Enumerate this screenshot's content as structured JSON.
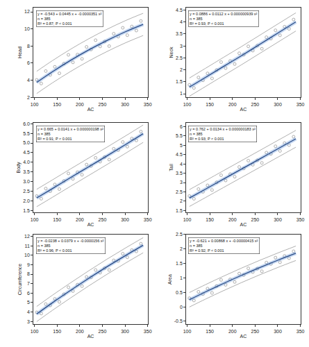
{
  "chart_data": [
    {
      "type": "scatter",
      "x_label": "AC",
      "y_label": "Head",
      "annotation": [
        "y = -0.543 + 0.0445 x + -0.0000351 x²",
        "n = 385",
        "R² = 0.87; P < 0.001"
      ],
      "x": [
        105,
        115,
        125,
        135,
        145,
        155,
        165,
        175,
        185,
        195,
        205,
        215,
        225,
        235,
        245,
        255,
        265,
        275,
        285,
        295,
        305,
        315,
        325,
        335
      ],
      "values": [
        4.04,
        3.61,
        5.07,
        4.62,
        5.57,
        4.81,
        5.94,
        6.97,
        6.09,
        7.0,
        6.5,
        7.9,
        7.59,
        8.68,
        7.95,
        8.52,
        7.99,
        9.44,
        9.09,
        10.13,
        9.27,
        10.29,
        9.81,
        10.93
      ],
      "color": "#9a9a9a",
      "marker": "circle-open",
      "fit": {
        "x": [
          105,
          140,
          180,
          220,
          260,
          300,
          340
        ],
        "values": [
          3.74,
          5.0,
          6.33,
          7.55,
          8.65,
          9.65,
          10.53
        ],
        "color": "#2b4c86"
      },
      "prediction_band": {
        "x": [
          105,
          140,
          180,
          220,
          260,
          300,
          340
        ],
        "upper": [
          5.04,
          6.3,
          7.63,
          8.85,
          9.95,
          10.95,
          11.83
        ],
        "lower": [
          2.44,
          3.7,
          5.03,
          6.25,
          7.35,
          8.35,
          9.23
        ],
        "color": "#9a9a9a"
      },
      "xlim": [
        98,
        350
      ],
      "xticks": [
        100,
        150,
        200,
        250,
        300,
        350
      ],
      "ylim": [
        2,
        12.5
      ],
      "yticks": [
        2,
        4,
        6,
        8,
        10,
        12
      ],
      "grid": false
    },
    {
      "type": "scatter",
      "x_label": "AC",
      "y_label": "Neck",
      "annotation": [
        "y = 0.0886 + 0.0112 x + 0.000000939 x²",
        "n = 385",
        "R² = 0.93; P < 0.001"
      ],
      "x": [
        105,
        115,
        125,
        135,
        145,
        155,
        165,
        175,
        185,
        195,
        205,
        215,
        225,
        235,
        245,
        255,
        265,
        275,
        285,
        295,
        305,
        315,
        325,
        335
      ],
      "values": [
        1.37,
        1.24,
        1.68,
        1.56,
        1.85,
        1.64,
        1.99,
        2.32,
        2.07,
        2.37,
        2.24,
        2.69,
        2.63,
        2.98,
        2.8,
        3.01,
        2.88,
        3.36,
        3.3,
        3.65,
        3.44,
        3.8,
        3.71,
        4.1
      ],
      "color": "#9a9a9a",
      "marker": "circle-open",
      "fit": {
        "x": [
          105,
          140,
          180,
          220,
          260,
          300,
          340
        ],
        "values": [
          1.275,
          1.675,
          2.135,
          2.59,
          3.06,
          3.53,
          4.0
        ],
        "color": "#2b4c86"
      },
      "prediction_band": {
        "x": [
          105,
          140,
          180,
          220,
          260,
          300,
          340
        ],
        "upper": [
          1.655,
          2.055,
          2.515,
          2.97,
          3.44,
          3.91,
          4.38
        ],
        "lower": [
          0.895,
          1.295,
          1.755,
          2.21,
          2.68,
          3.15,
          3.62
        ],
        "color": "#9a9a9a"
      },
      "xlim": [
        98,
        350
      ],
      "xticks": [
        100,
        150,
        200,
        250,
        300,
        350
      ],
      "ylim": [
        0.85,
        4.6
      ],
      "yticks": [
        1,
        1.5,
        2,
        2.5,
        3,
        3.5,
        4,
        4.5
      ],
      "grid": false
    },
    {
      "type": "scatter",
      "x_label": "AC",
      "y_label": "Body",
      "annotation": [
        "y = 0.665 + 0.0141 x + 0.000000198 x²",
        "n = 385",
        "R² = 0.91; P < 0.001"
      ],
      "x": [
        105,
        115,
        125,
        135,
        145,
        155,
        165,
        175,
        185,
        195,
        205,
        215,
        225,
        235,
        245,
        255,
        265,
        275,
        285,
        295,
        305,
        315,
        325,
        335
      ],
      "values": [
        2.25,
        2.11,
        2.64,
        2.5,
        2.85,
        2.61,
        3.03,
        3.42,
        3.14,
        3.49,
        3.35,
        3.88,
        3.81,
        4.23,
        4.03,
        4.27,
        4.14,
        4.7,
        4.63,
        5.05,
        4.81,
        5.23,
        5.13,
        5.59
      ],
      "color": "#9a9a9a",
      "marker": "circle-open",
      "fit": {
        "x": [
          105,
          140,
          180,
          220,
          260,
          300,
          340
        ],
        "values": [
          2.15,
          2.64,
          3.21,
          3.77,
          4.33,
          4.9,
          5.48
        ],
        "color": "#2b4c86"
      },
      "prediction_band": {
        "x": [
          105,
          140,
          180,
          220,
          260,
          300,
          340
        ],
        "upper": [
          2.6,
          3.09,
          3.66,
          4.22,
          4.78,
          5.35,
          5.93
        ],
        "lower": [
          1.7,
          2.19,
          2.76,
          3.32,
          3.88,
          4.45,
          5.03
        ],
        "color": "#9a9a9a"
      },
      "xlim": [
        98,
        350
      ],
      "xticks": [
        100,
        150,
        200,
        250,
        300,
        350
      ],
      "ylim": [
        1.4,
        6.05
      ],
      "yticks": [
        1.5,
        {
          "value": 2,
          "label": "2.0"
        },
        2.5,
        {
          "value": 3,
          "label": "3.0"
        },
        3.5,
        {
          "value": 4,
          "label": "4.0"
        },
        4.5,
        {
          "value": 5,
          "label": "5.0"
        },
        5.5,
        {
          "value": 6,
          "label": "6.0"
        }
      ],
      "grid": false
    },
    {
      "type": "scatter",
      "x_label": "AC",
      "y_label": "Tail",
      "annotation": [
        "y = 0.762 + 0.0134 x + 0.000000183 x²",
        "n = 385",
        "R² = 0.93; P < 0.001"
      ],
      "x": [
        105,
        115,
        125,
        135,
        145,
        155,
        165,
        175,
        185,
        195,
        205,
        215,
        225,
        235,
        245,
        255,
        265,
        275,
        285,
        295,
        305,
        315,
        325,
        335
      ],
      "values": [
        2.28,
        2.13,
        2.65,
        2.5,
        2.85,
        2.6,
        3.01,
        3.39,
        3.11,
        3.45,
        3.31,
        3.83,
        3.75,
        4.17,
        3.95,
        4.19,
        4.05,
        4.6,
        4.53,
        4.94,
        4.69,
        5.11,
        5.0,
        5.45
      ],
      "color": "#9a9a9a",
      "marker": "circle-open",
      "fit": {
        "x": [
          105,
          140,
          180,
          220,
          260,
          300,
          340
        ],
        "values": [
          2.17,
          2.64,
          3.18,
          3.72,
          4.26,
          4.8,
          5.34
        ],
        "color": "#2b4c86"
      },
      "prediction_band": {
        "x": [
          105,
          140,
          180,
          220,
          260,
          300,
          340
        ],
        "upper": [
          2.62,
          3.09,
          3.63,
          4.17,
          4.71,
          5.25,
          5.79
        ],
        "lower": [
          1.72,
          2.19,
          2.73,
          3.27,
          3.81,
          4.35,
          4.89
        ],
        "color": "#9a9a9a"
      },
      "xlim": [
        98,
        350
      ],
      "xticks": [
        100,
        150,
        200,
        250,
        300,
        350
      ],
      "ylim": [
        1.4,
        6.2
      ],
      "yticks": [
        1.5,
        2,
        2.5,
        3,
        3.5,
        4,
        4.5,
        5,
        5.5,
        6
      ],
      "grid": false
    },
    {
      "type": "scatter",
      "x_label": "AC",
      "y_label": "Circumference",
      "annotation": [
        "y = -0.0238 + 0.0379 x + -0.0000156 x²",
        "n = 385",
        "R² = 0.96; P < 0.001"
      ],
      "x": [
        105,
        115,
        125,
        135,
        145,
        155,
        165,
        175,
        185,
        195,
        205,
        215,
        225,
        235,
        245,
        255,
        265,
        275,
        285,
        295,
        305,
        315,
        325,
        335
      ],
      "values": [
        3.96,
        3.83,
        4.83,
        4.69,
        5.38,
        5.06,
        5.87,
        6.61,
        6.21,
        6.89,
        6.73,
        7.7,
        7.65,
        8.44,
        8.15,
        8.63,
        8.44,
        9.46,
        9.39,
        10.16,
        9.79,
        10.55,
        10.41,
        11.22
      ],
      "color": "#9a9a9a",
      "marker": "circle-open",
      "fit": {
        "x": [
          105,
          140,
          180,
          220,
          260,
          300,
          340
        ],
        "values": [
          3.78,
          4.98,
          6.29,
          7.56,
          8.78,
          9.94,
          11.06
        ],
        "color": "#2b4c86"
      },
      "prediction_band": {
        "x": [
          105,
          140,
          180,
          220,
          260,
          300,
          340
        ],
        "upper": [
          4.58,
          5.78,
          7.09,
          8.36,
          9.58,
          10.74,
          11.86
        ],
        "lower": [
          2.98,
          4.18,
          5.49,
          6.76,
          7.98,
          9.14,
          10.26
        ],
        "color": "#9a9a9a"
      },
      "xlim": [
        98,
        350
      ],
      "xticks": [
        100,
        150,
        200,
        250,
        300,
        350
      ],
      "ylim": [
        2.7,
        12.2
      ],
      "yticks": [
        3,
        4,
        5,
        6,
        7,
        8,
        9,
        10,
        11,
        12
      ],
      "grid": false
    },
    {
      "type": "scatter",
      "x_label": "AC",
      "y_label": "Area",
      "annotation": [
        "y = -0.621 + 0.00868 x + -0.00000415 x²",
        "n = 385",
        "R² = 0.92; P < 0.001"
      ],
      "x": [
        105,
        115,
        125,
        135,
        145,
        155,
        165,
        175,
        185,
        195,
        205,
        215,
        225,
        235,
        245,
        255,
        265,
        275,
        285,
        295,
        305,
        315,
        325,
        335
      ],
      "values": [
        0.3,
        0.22,
        0.52,
        0.44,
        0.63,
        0.48,
        0.72,
        0.93,
        0.76,
        0.95,
        0.86,
        1.15,
        1.1,
        1.33,
        1.2,
        1.32,
        1.23,
        1.53,
        1.48,
        1.7,
        1.54,
        1.76,
        1.68,
        1.92
      ],
      "color": "#9a9a9a",
      "marker": "circle-open",
      "fit": {
        "x": [
          105,
          140,
          180,
          220,
          260,
          300,
          340
        ],
        "values": [
          0.244,
          0.513,
          0.807,
          1.088,
          1.355,
          1.609,
          1.85
        ],
        "color": "#2b4c86"
      },
      "prediction_band": {
        "x": [
          105,
          140,
          180,
          220,
          260,
          300,
          340
        ],
        "upper": [
          0.494,
          0.763,
          1.057,
          1.338,
          1.605,
          1.859,
          2.1
        ],
        "lower": [
          -0.006,
          0.263,
          0.557,
          0.838,
          1.105,
          1.359,
          1.6
        ],
        "color": "#9a9a9a"
      },
      "xlim": [
        98,
        350
      ],
      "xticks": [
        100,
        150,
        200,
        250,
        300,
        350
      ],
      "ylim": [
        -0.6,
        2.5
      ],
      "yticks": [
        -0.5,
        0,
        0.5,
        1,
        1.5,
        2,
        2.5
      ],
      "grid": false
    }
  ]
}
